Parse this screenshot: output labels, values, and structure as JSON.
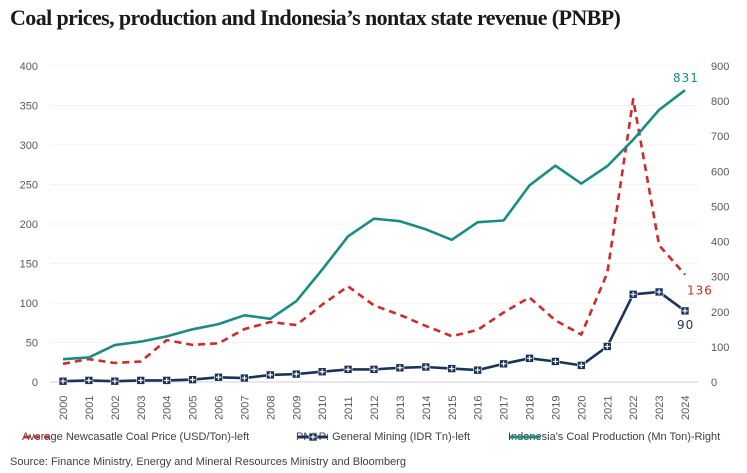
{
  "chart_data": {
    "type": "line",
    "title": "Coal prices, production and Indonesia’s nontax state revenue (PNBP)",
    "source": "Source: Finance Ministry, Energy and Mineral Resources Ministry and Bloomberg",
    "x": [
      "2000",
      "2001",
      "2002",
      "2003",
      "2004",
      "2005",
      "2006",
      "2007",
      "2008",
      "2009",
      "2010",
      "2011",
      "2012",
      "2013",
      "2014",
      "2015",
      "2016",
      "2017",
      "2018",
      "2019",
      "2020",
      "2021",
      "2022",
      "2023",
      "2024"
    ],
    "y_left": {
      "range": [
        0,
        400
      ],
      "ticks": [
        "0",
        "50",
        "100",
        "150",
        "200",
        "250",
        "300",
        "350",
        "400"
      ]
    },
    "y_right": {
      "range": [
        0,
        900
      ],
      "ticks": [
        "0",
        "100",
        "200",
        "300",
        "400",
        "500",
        "600",
        "700",
        "800",
        "900"
      ]
    },
    "grid": true,
    "legend_position": "bottom",
    "series": [
      {
        "name": "Average Newcasatle Coal Price (USD/Ton)-left",
        "axis": "left",
        "style": "dashed",
        "color": "#d02a2a",
        "values": [
          23,
          29,
          24,
          26,
          53,
          47,
          49,
          67,
          76,
          72,
          98,
          121,
          97,
          85,
          71,
          58,
          66,
          88,
          107,
          78,
          60,
          138,
          358,
          173,
          136
        ],
        "end_label": "136"
      },
      {
        "name": "PNBP: General Mining (IDR Tn)-left",
        "axis": "left",
        "style": "solid-marker",
        "color": "#1b3358",
        "values": [
          1,
          2,
          1,
          2,
          2,
          3,
          6,
          5,
          9,
          10,
          13,
          16,
          16,
          18,
          19,
          17,
          15,
          23,
          30,
          26,
          21,
          45,
          111,
          114,
          90
        ],
        "end_label": "90"
      },
      {
        "name": "Indonesia's Coal Production (Mn Ton)-Right",
        "axis": "right",
        "style": "solid",
        "color": "#1a8c86",
        "values": [
          65,
          70,
          105,
          115,
          130,
          150,
          165,
          190,
          180,
          230,
          320,
          415,
          465,
          458,
          435,
          405,
          455,
          460,
          560,
          616,
          565,
          615,
          690,
          775,
          831
        ],
        "end_label": "831"
      }
    ]
  }
}
